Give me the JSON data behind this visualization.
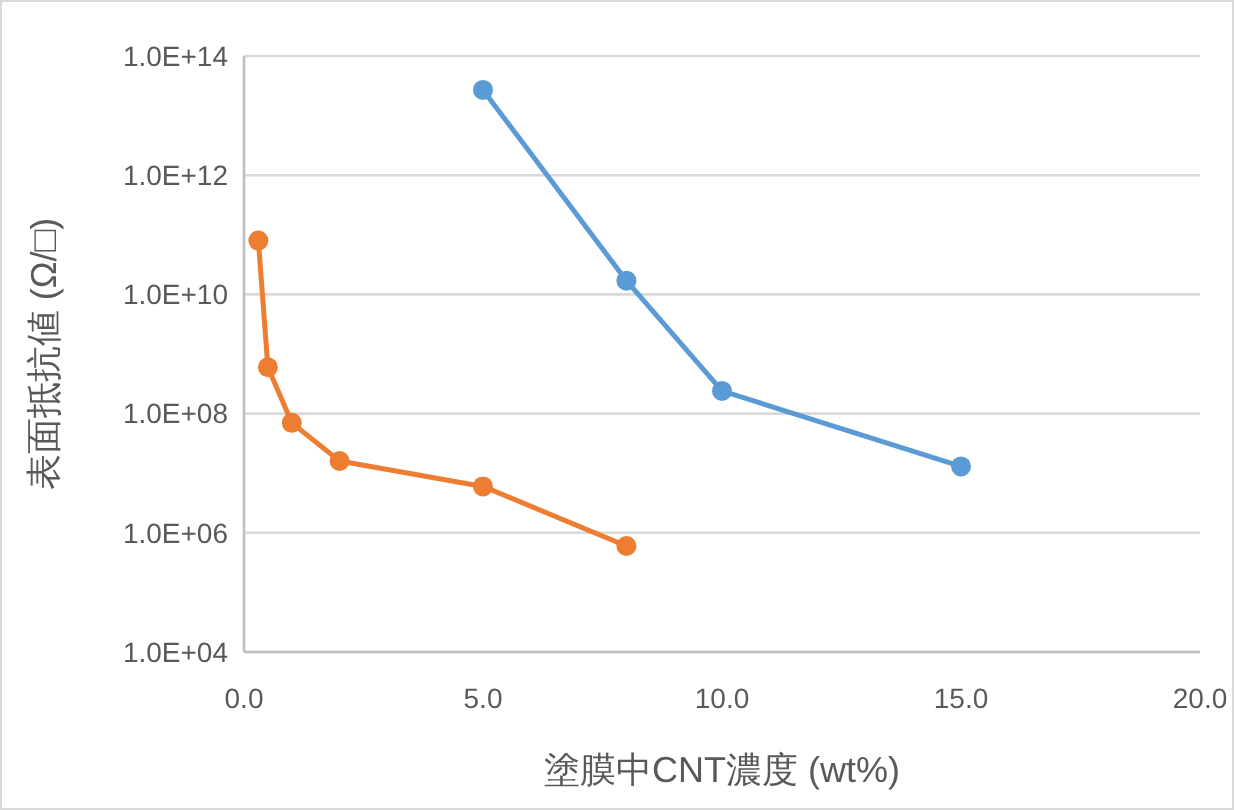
{
  "chart_data": {
    "type": "line",
    "xlabel": "塗膜中CNT濃度 (wt%)",
    "ylabel": "表面抵抗値 (Ω/□)",
    "log": "y",
    "grid": "y",
    "legend": false,
    "marker": "circle",
    "line_style": "solid",
    "xlim": [
      0,
      20
    ],
    "xticks": [
      {
        "value": 0,
        "label": "0.0"
      },
      {
        "value": 5,
        "label": "5.0"
      },
      {
        "value": 10,
        "label": "10.0"
      },
      {
        "value": 15,
        "label": "15.0"
      },
      {
        "value": 20,
        "label": "20.0"
      }
    ],
    "ylim": [
      10000,
      100000000000000
    ],
    "yticks": [
      {
        "value": 10000,
        "label": "1.0E+04"
      },
      {
        "value": 1000000,
        "label": "1.0E+06"
      },
      {
        "value": 100000000,
        "label": "1.0E+08"
      },
      {
        "value": 10000000000,
        "label": "1.0E+10"
      },
      {
        "value": 1000000000000,
        "label": "1.0E+12"
      },
      {
        "value": 100000000000000,
        "label": "1.0E+14"
      }
    ],
    "series": [
      {
        "color": "#ed7d31",
        "x": [
          0.3,
          0.5,
          1,
          2,
          5,
          8
        ],
        "values": [
          80000000000,
          600000000,
          70000000,
          16000000,
          6000000,
          600000
        ]
      },
      {
        "color": "#5b9bd5",
        "x": [
          5,
          8,
          10,
          15
        ],
        "values": [
          27000000000000,
          17000000000,
          240000000,
          13000000
        ]
      }
    ]
  }
}
